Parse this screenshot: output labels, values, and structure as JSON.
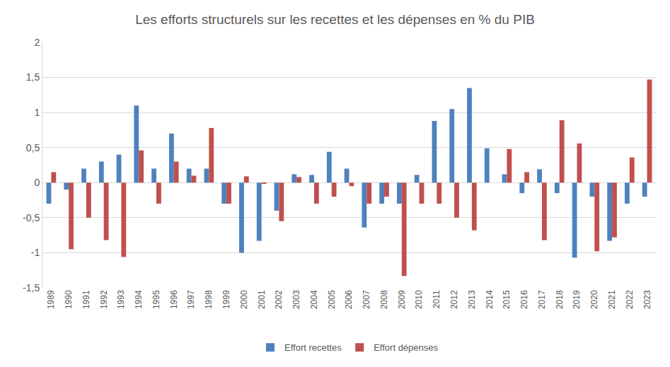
{
  "chart_data": {
    "type": "bar",
    "title": "Les efforts structurels sur les recettes et les dépenses en % du PIB",
    "categories": [
      "1989",
      "1990",
      "1991",
      "1992",
      "1993",
      "1994",
      "1995",
      "1996",
      "1997",
      "1998",
      "1999",
      "2000",
      "2001",
      "2002",
      "2003",
      "2004",
      "2005",
      "2006",
      "2007",
      "2008",
      "2009",
      "2010",
      "2011",
      "2012",
      "2013",
      "2014",
      "2015",
      "2016",
      "2017",
      "2018",
      "2019",
      "2020",
      "2021",
      "2022",
      "2023"
    ],
    "series": [
      {
        "name": "Effort recettes",
        "color": "#4f81bd",
        "values": [
          -0.3,
          -0.1,
          0.2,
          0.3,
          0.4,
          1.1,
          0.2,
          0.7,
          0.2,
          0.2,
          -0.3,
          -1.0,
          -0.83,
          -0.4,
          0.12,
          0.11,
          0.44,
          0.2,
          -0.64,
          -0.3,
          -0.3,
          0.11,
          0.88,
          1.05,
          1.35,
          0.49,
          0.12,
          -0.15,
          0.19,
          -0.15,
          -1.07,
          -0.2,
          -0.83,
          -0.3,
          -0.2
        ]
      },
      {
        "name": "Effort dépenses",
        "color": "#c0504d",
        "values": [
          0.15,
          -0.95,
          -0.5,
          -0.82,
          -1.06,
          0.46,
          -0.3,
          0.3,
          0.1,
          0.78,
          -0.3,
          0.09,
          -0.01,
          -0.55,
          0.08,
          -0.3,
          -0.2,
          -0.05,
          -0.3,
          -0.2,
          -1.33,
          -0.3,
          -0.3,
          -0.5,
          -0.68,
          0,
          0.48,
          0.15,
          -0.82,
          0.89,
          0.56,
          -0.98,
          -0.78,
          0.36,
          1.47
        ]
      }
    ],
    "ylim": [
      -1.5,
      2
    ],
    "yticks": [
      {
        "value": -1.5,
        "label": "-1,5"
      },
      -1,
      {
        "value": -0.5,
        "label": "-0,5"
      },
      0,
      {
        "value": 0.5,
        "label": "0,5"
      },
      1,
      {
        "value": 1.5,
        "label": "1,5"
      },
      2
    ],
    "grid": true,
    "legend": "bottom"
  }
}
